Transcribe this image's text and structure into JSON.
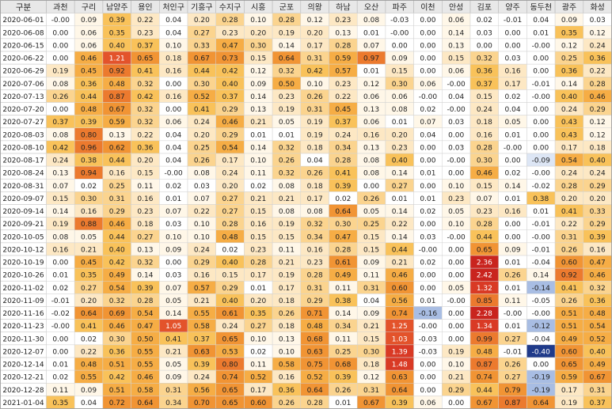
{
  "chart_data": {
    "type": "heatmap",
    "corner_label": "구분",
    "columns": [
      "과천",
      "구리",
      "남양주",
      "용인",
      "처인구",
      "기흥구",
      "수지구",
      "시흥",
      "군포",
      "의왕",
      "하남",
      "오산",
      "파주",
      "이천",
      "안성",
      "김포",
      "양주",
      "동두천",
      "광주",
      "화성"
    ],
    "rows": [
      {
        "date": "2020-06-01",
        "values": [
          "-0.00",
          "0.09",
          "0.39",
          "0.22",
          "0.04",
          "0.20",
          "0.28",
          "0.10",
          "0.28",
          "0.12",
          "0.23",
          "0.08",
          "-0.03",
          "0.00",
          "0.06",
          "0.02",
          "-0.01",
          "0.04",
          "0.09",
          "0.03"
        ]
      },
      {
        "date": "2020-06-08",
        "values": [
          "0.00",
          "0.06",
          "0.35",
          "0.23",
          "0.04",
          "0.27",
          "0.23",
          "0.20",
          "0.19",
          "0.20",
          "0.13",
          "0.01",
          "-0.00",
          "0.00",
          "0.14",
          "0.03",
          "0.00",
          "0.01",
          "0.35",
          "0.12"
        ]
      },
      {
        "date": "2020-06-15",
        "values": [
          "0.00",
          "0.06",
          "0.40",
          "0.37",
          "0.10",
          "0.33",
          "0.47",
          "0.30",
          "0.14",
          "0.17",
          "0.28",
          "0.07",
          "0.00",
          "0.00",
          "0.13",
          "0.00",
          "0.00",
          "-0.00",
          "0.12",
          "0.24"
        ]
      },
      {
        "date": "2020-06-22",
        "values": [
          "0.00",
          "0.46",
          "1.21",
          "0.65",
          "0.18",
          "0.67",
          "0.73",
          "0.15",
          "0.64",
          "0.31",
          "0.59",
          "0.97",
          "0.09",
          "0.00",
          "0.15",
          "0.32",
          "0.03",
          "0.00",
          "0.25",
          "0.36"
        ]
      },
      {
        "date": "2020-06-29",
        "values": [
          "0.19",
          "0.45",
          "0.92",
          "0.41",
          "0.16",
          "0.44",
          "0.42",
          "0.12",
          "0.32",
          "0.42",
          "0.57",
          "0.01",
          "0.15",
          "0.00",
          "0.06",
          "0.36",
          "0.16",
          "0.00",
          "0.36",
          "0.22"
        ]
      },
      {
        "date": "2020-07-06",
        "values": [
          "0.08",
          "0.36",
          "0.48",
          "0.32",
          "0.00",
          "0.30",
          "0.40",
          "0.09",
          "0.50",
          "0.10",
          "0.23",
          "0.12",
          "0.30",
          "0.06",
          "-0.00",
          "0.37",
          "0.17",
          "-0.01",
          "0.14",
          "0.28"
        ]
      },
      {
        "date": "2020-07-13",
        "values": [
          "0.26",
          "0.44",
          "0.87",
          "0.42",
          "0.16",
          "0.52",
          "0.37",
          "0.14",
          "0.23",
          "0.26",
          "0.22",
          "0.06",
          "0.06",
          "-0.00",
          "0.04",
          "0.15",
          "0.02",
          "-0.00",
          "0.40",
          "0.46"
        ]
      },
      {
        "date": "2020-07-20",
        "values": [
          "0.00",
          "0.48",
          "0.67",
          "0.32",
          "0.00",
          "0.41",
          "0.29",
          "0.13",
          "0.19",
          "0.31",
          "0.45",
          "0.13",
          "0.08",
          "0.02",
          "-0.00",
          "0.24",
          "0.04",
          "0.00",
          "0.24",
          "0.29"
        ]
      },
      {
        "date": "2020-07-27",
        "values": [
          "0.37",
          "0.39",
          "0.59",
          "0.32",
          "0.06",
          "0.24",
          "0.46",
          "0.21",
          "0.05",
          "0.19",
          "0.37",
          "0.06",
          "0.01",
          "0.07",
          "0.03",
          "0.18",
          "0.05",
          "0.00",
          "0.43",
          "0.12"
        ]
      },
      {
        "date": "2020-08-03",
        "values": [
          "0.08",
          "0.80",
          "0.13",
          "0.22",
          "0.04",
          "0.20",
          "0.29",
          "0.01",
          "0.01",
          "0.19",
          "0.24",
          "0.16",
          "0.20",
          "0.04",
          "0.00",
          "0.16",
          "0.01",
          "0.00",
          "0.43",
          "0.12"
        ]
      },
      {
        "date": "2020-08-10",
        "values": [
          "0.42",
          "0.96",
          "0.62",
          "0.36",
          "0.04",
          "0.25",
          "0.54",
          "0.14",
          "0.32",
          "0.18",
          "0.34",
          "0.13",
          "0.23",
          "0.00",
          "0.03",
          "0.28",
          "-0.00",
          "0.00",
          "0.17",
          "0.18"
        ]
      },
      {
        "date": "2020-08-17",
        "values": [
          "0.24",
          "0.38",
          "0.44",
          "0.20",
          "0.04",
          "0.26",
          "0.17",
          "0.10",
          "0.26",
          "0.04",
          "0.28",
          "0.08",
          "0.40",
          "0.00",
          "-0.00",
          "0.30",
          "0.00",
          "-0.09",
          "0.54",
          "0.40"
        ]
      },
      {
        "date": "2020-08-24",
        "values": [
          "0.13",
          "0.94",
          "0.16",
          "0.15",
          "-0.00",
          "0.08",
          "0.24",
          "0.11",
          "0.32",
          "0.26",
          "0.41",
          "0.08",
          "0.14",
          "0.01",
          "0.00",
          "0.46",
          "0.02",
          "-0.00",
          "0.24",
          "0.24"
        ]
      },
      {
        "date": "2020-08-31",
        "values": [
          "0.07",
          "0.02",
          "0.25",
          "0.11",
          "0.02",
          "0.03",
          "0.20",
          "0.02",
          "0.08",
          "0.18",
          "0.39",
          "0.00",
          "0.27",
          "0.00",
          "0.10",
          "0.15",
          "0.14",
          "-0.02",
          "0.28",
          "0.29"
        ]
      },
      {
        "date": "2020-09-07",
        "values": [
          "0.15",
          "0.30",
          "0.31",
          "0.16",
          "0.01",
          "0.07",
          "0.27",
          "0.21",
          "0.21",
          "0.17",
          "0.02",
          "0.26",
          "0.01",
          "0.01",
          "0.23",
          "0.07",
          "0.01",
          "0.38",
          "0.20",
          "0.20"
        ]
      },
      {
        "date": "2020-09-14",
        "values": [
          "0.14",
          "0.16",
          "0.29",
          "0.23",
          "0.07",
          "0.22",
          "0.27",
          "0.15",
          "0.08",
          "0.08",
          "0.64",
          "0.05",
          "0.14",
          "0.02",
          "0.05",
          "0.23",
          "0.16",
          "0.01",
          "0.41",
          "0.33"
        ]
      },
      {
        "date": "2020-09-21",
        "values": [
          "0.19",
          "0.88",
          "0.46",
          "0.18",
          "0.03",
          "0.10",
          "0.28",
          "0.16",
          "0.19",
          "0.32",
          "0.30",
          "0.25",
          "0.22",
          "0.00",
          "0.10",
          "0.28",
          "0.00",
          "-0.01",
          "0.22",
          "0.29"
        ]
      },
      {
        "date": "2020-10-05",
        "values": [
          "0.08",
          "0.05",
          "0.44",
          "0.27",
          "0.10",
          "0.10",
          "0.48",
          "0.15",
          "0.15",
          "0.34",
          "0.47",
          "0.15",
          "0.14",
          "0.03",
          "-0.00",
          "0.44",
          "0.00",
          "-0.00",
          "0.31",
          "0.39"
        ]
      },
      {
        "date": "2020-10-12",
        "values": [
          "0.16",
          "0.21",
          "0.40",
          "0.13",
          "0.09",
          "0.24",
          "0.02",
          "0.23",
          "0.11",
          "0.16",
          "0.28",
          "0.15",
          "0.44",
          "-0.00",
          "0.00",
          "0.65",
          "0.09",
          "-0.01",
          "0.26",
          "0.16"
        ]
      },
      {
        "date": "2020-10-19",
        "values": [
          "0.00",
          "0.45",
          "0.42",
          "0.32",
          "0.00",
          "0.29",
          "0.40",
          "0.28",
          "0.21",
          "0.23",
          "0.61",
          "0.09",
          "0.21",
          "0.02",
          "0.00",
          "2.36",
          "0.01",
          "-0.04",
          "0.60",
          "0.47"
        ]
      },
      {
        "date": "2020-10-26",
        "values": [
          "0.01",
          "0.35",
          "0.49",
          "0.14",
          "0.03",
          "0.16",
          "0.15",
          "0.17",
          "0.19",
          "0.28",
          "0.49",
          "0.11",
          "0.46",
          "0.00",
          "0.00",
          "2.42",
          "0.26",
          "0.14",
          "0.92",
          "0.46"
        ]
      },
      {
        "date": "2020-11-02",
        "values": [
          "0.02",
          "0.27",
          "0.54",
          "0.39",
          "0.07",
          "0.57",
          "0.29",
          "0.01",
          "0.17",
          "0.31",
          "0.11",
          "0.31",
          "0.60",
          "0.00",
          "0.05",
          "1.32",
          "0.01",
          "-0.14",
          "0.41",
          "0.32"
        ]
      },
      {
        "date": "2020-11-09",
        "values": [
          "-0.01",
          "0.20",
          "0.32",
          "0.28",
          "0.05",
          "0.21",
          "0.40",
          "0.20",
          "0.18",
          "0.29",
          "0.38",
          "0.04",
          "0.56",
          "0.01",
          "-0.00",
          "0.85",
          "0.11",
          "-0.05",
          "0.26",
          "0.36"
        ]
      },
      {
        "date": "2020-11-16",
        "values": [
          "-0.02",
          "0.64",
          "0.69",
          "0.54",
          "0.14",
          "0.55",
          "0.61",
          "0.35",
          "0.26",
          "0.71",
          "0.14",
          "0.09",
          "0.74",
          "-0.16",
          "0.00",
          "2.28",
          "-0.00",
          "-0.00",
          "0.51",
          "0.48"
        ]
      },
      {
        "date": "2020-11-23",
        "values": [
          "-0.00",
          "0.41",
          "0.46",
          "0.47",
          "1.05",
          "0.58",
          "0.24",
          "0.27",
          "0.18",
          "0.48",
          "0.34",
          "0.21",
          "1.25",
          "-0.00",
          "0.00",
          "1.34",
          "0.01",
          "-0.12",
          "0.51",
          "0.54"
        ]
      },
      {
        "date": "2020-11-30",
        "values": [
          "0.00",
          "0.02",
          "0.30",
          "0.50",
          "0.41",
          "0.37",
          "0.65",
          "0.10",
          "0.13",
          "0.68",
          "0.11",
          "0.15",
          "1.03",
          "-0.03",
          "0.00",
          "0.99",
          "0.27",
          "-0.04",
          "0.49",
          "0.52"
        ]
      },
      {
        "date": "2020-12-07",
        "values": [
          "0.00",
          "0.22",
          "0.36",
          "0.55",
          "0.21",
          "0.63",
          "0.53",
          "0.02",
          "0.10",
          "0.63",
          "0.25",
          "0.30",
          "1.39",
          "-0.03",
          "0.19",
          "0.48",
          "-0.01",
          "-0.40",
          "0.60",
          "0.40"
        ]
      },
      {
        "date": "2020-12-14",
        "values": [
          "0.01",
          "0.48",
          "0.51",
          "0.55",
          "0.05",
          "0.39",
          "0.80",
          "0.11",
          "0.58",
          "0.75",
          "0.68",
          "0.18",
          "1.48",
          "0.00",
          "0.10",
          "0.87",
          "0.26",
          "0.00",
          "0.65",
          "0.49"
        ]
      },
      {
        "date": "2020-12-21",
        "values": [
          "0.02",
          "0.55",
          "0.42",
          "0.46",
          "0.09",
          "0.24",
          "0.74",
          "0.52",
          "0.16",
          "0.52",
          "0.39",
          "0.12",
          "0.63",
          "0.00",
          "0.21",
          "0.74",
          "0.27",
          "-0.19",
          "0.59",
          "0.67"
        ]
      },
      {
        "date": "2020-12-28",
        "values": [
          "0.11",
          "0.09",
          "0.51",
          "0.58",
          "0.31",
          "0.56",
          "0.65",
          "0.17",
          "0.36",
          "0.64",
          "0.26",
          "0.31",
          "0.64",
          "0.00",
          "0.29",
          "0.44",
          "0.79",
          "-0.19",
          "0.17",
          "0.31"
        ]
      },
      {
        "date": "2021-01-04",
        "values": [
          "0.35",
          "0.04",
          "0.72",
          "0.64",
          "0.34",
          "0.70",
          "0.65",
          "0.60",
          "0.26",
          "0.28",
          "0.01",
          "0.67",
          "0.39",
          "0.06",
          "0.00",
          "0.67",
          "0.87",
          "0.64",
          "0.19",
          "0.37"
        ]
      }
    ]
  }
}
